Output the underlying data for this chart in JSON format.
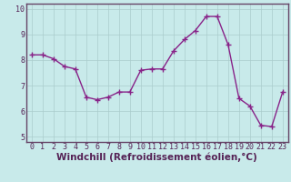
{
  "x": [
    0,
    1,
    2,
    3,
    4,
    5,
    6,
    7,
    8,
    9,
    10,
    11,
    12,
    13,
    14,
    15,
    16,
    17,
    18,
    19,
    20,
    21,
    22,
    23
  ],
  "y": [
    8.2,
    8.2,
    8.05,
    7.75,
    7.65,
    6.55,
    6.45,
    6.55,
    6.75,
    6.75,
    7.6,
    7.65,
    7.65,
    8.35,
    8.8,
    9.15,
    9.7,
    9.7,
    8.6,
    6.5,
    6.2,
    5.45,
    5.4,
    6.75
  ],
  "line_color": "#882288",
  "marker": "+",
  "marker_size": 4,
  "bg_color": "#c8eaea",
  "grid_color": "#aacccc",
  "spine_color": "#664466",
  "xlabel": "Windchill (Refroidissement éolien,°C)",
  "ylim": [
    4.8,
    10.2
  ],
  "yticks": [
    5,
    6,
    7,
    8,
    9,
    10
  ],
  "xticks": [
    0,
    1,
    2,
    3,
    4,
    5,
    6,
    7,
    8,
    9,
    10,
    11,
    12,
    13,
    14,
    15,
    16,
    17,
    18,
    19,
    20,
    21,
    22,
    23
  ],
  "xlabel_fontsize": 7.5,
  "tick_fontsize": 6,
  "line_width": 1.0,
  "tick_color": "#552255"
}
